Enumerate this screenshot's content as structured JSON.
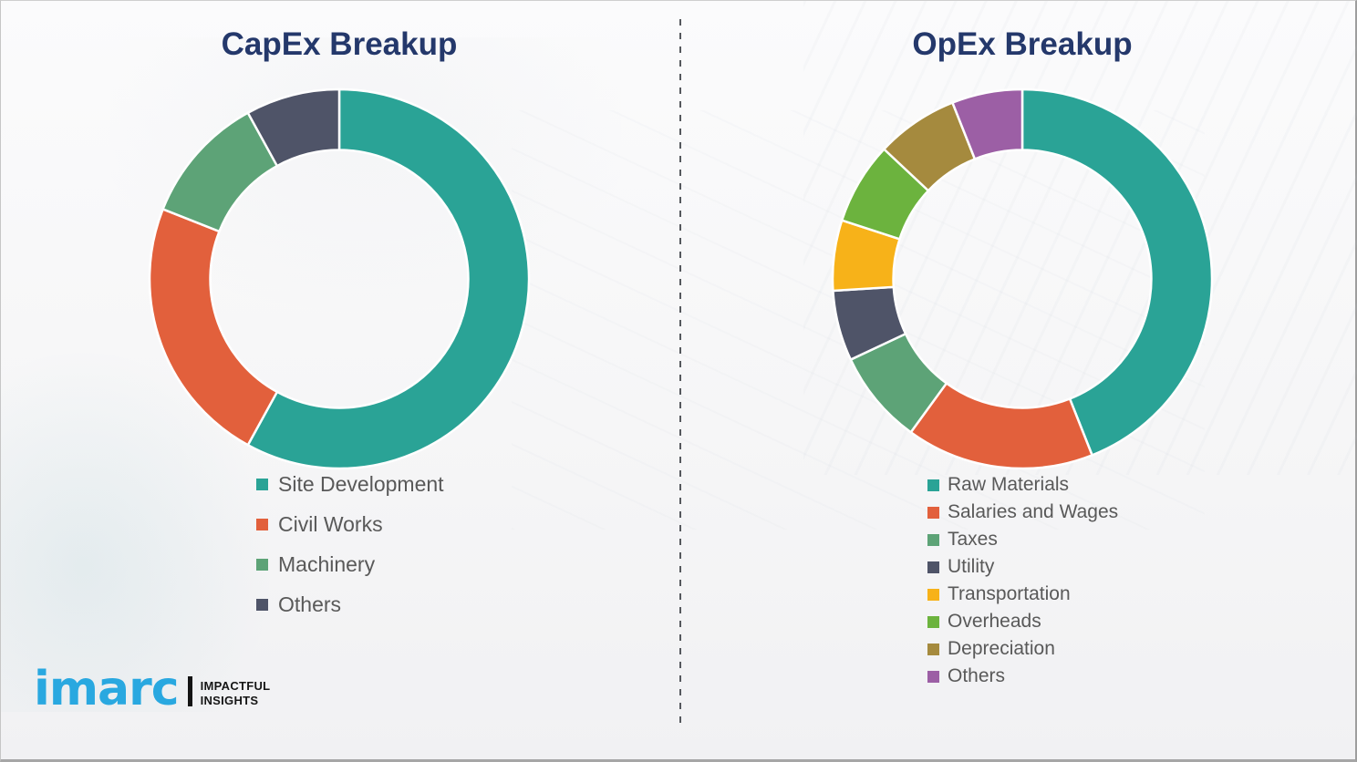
{
  "theme": {
    "title_color": "#24386b",
    "legend_text_color": "#595959",
    "background_color": "#f7f7f8",
    "divider_color": "#55585d",
    "segment_gap_color": "#ffffff",
    "logo_blue": "#29a8e0",
    "logo_black": "#141414"
  },
  "chart_data": [
    {
      "type": "pie",
      "subtype": "donut",
      "title": "CapEx Breakup",
      "start_angle_deg": 0,
      "direction": "clockwise",
      "donut_hole_ratio": 0.68,
      "data_labels_shown": false,
      "values_unit": "percent (estimated from arc angles; no numeric labels shown)",
      "legend_position": "below-left",
      "series": [
        {
          "label": "Site Development",
          "value": 58,
          "color": "#2aa396"
        },
        {
          "label": "Civil Works",
          "value": 23,
          "color": "#e2603c"
        },
        {
          "label": "Machinery",
          "value": 11,
          "color": "#5da377"
        },
        {
          "label": "Others",
          "value": 8,
          "color": "#4f5468"
        }
      ]
    },
    {
      "type": "pie",
      "subtype": "donut",
      "title": "OpEx Breakup",
      "start_angle_deg": 0,
      "direction": "clockwise",
      "donut_hole_ratio": 0.68,
      "data_labels_shown": false,
      "values_unit": "percent (estimated from arc angles; no numeric labels shown)",
      "legend_position": "below-left",
      "series": [
        {
          "label": "Raw Materials",
          "value": 44,
          "color": "#2aa396"
        },
        {
          "label": "Salaries and Wages",
          "value": 16,
          "color": "#e2603c"
        },
        {
          "label": "Taxes",
          "value": 8,
          "color": "#5da377"
        },
        {
          "label": "Utility",
          "value": 6,
          "color": "#4f5468"
        },
        {
          "label": "Transportation",
          "value": 6,
          "color": "#f7b219"
        },
        {
          "label": "Overheads",
          "value": 7,
          "color": "#6cb33e"
        },
        {
          "label": "Depreciation",
          "value": 7,
          "color": "#a58a3e"
        },
        {
          "label": "Others",
          "value": 6,
          "color": "#9c5fa5"
        }
      ]
    }
  ],
  "logo": {
    "wordmark": "imarc",
    "tagline": [
      "IMPACTFUL",
      "INSIGHTS"
    ]
  }
}
